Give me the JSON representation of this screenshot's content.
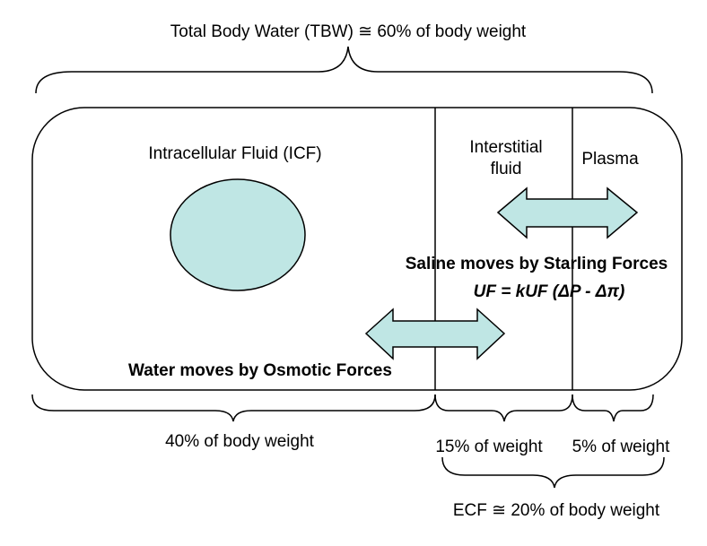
{
  "tbw_label": "Total Body Water (TBW) ≅ 60% of body weight",
  "compartments": {
    "icf": "Intracellular Fluid (ICF)",
    "interstitial_line1": "Interstitial",
    "interstitial_line2": "fluid",
    "plasma": "Plasma"
  },
  "forces": {
    "saline": "Saline moves by Starling Forces",
    "equation": "UF = kUF (ΔP - Δπ)",
    "water": "Water moves by Osmotic Forces"
  },
  "percentages": {
    "icf": "40% of body weight",
    "interstitial": "15% of weight",
    "plasma": "5% of weight",
    "ecf": "ECF ≅ 20% of body weight"
  },
  "colors": {
    "fill": "#bfe6e4",
    "stroke": "#000000"
  }
}
